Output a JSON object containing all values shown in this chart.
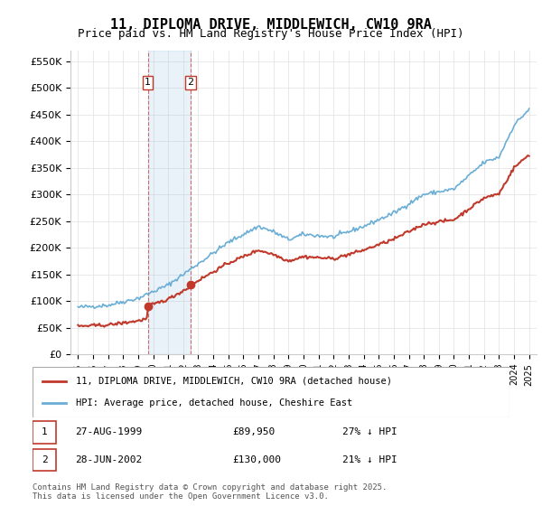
{
  "title": "11, DIPLOMA DRIVE, MIDDLEWICH, CW10 9RA",
  "subtitle": "Price paid vs. HM Land Registry's House Price Index (HPI)",
  "legend_line1": "11, DIPLOMA DRIVE, MIDDLEWICH, CW10 9RA (detached house)",
  "legend_line2": "HPI: Average price, detached house, Cheshire East",
  "footer": "Contains HM Land Registry data © Crown copyright and database right 2025.\nThis data is licensed under the Open Government Licence v3.0.",
  "transaction1_label": "1",
  "transaction1_date": "27-AUG-1999",
  "transaction1_price": "£89,950",
  "transaction1_hpi": "27% ↓ HPI",
  "transaction2_label": "2",
  "transaction2_date": "28-JUN-2002",
  "transaction2_price": "£130,000",
  "transaction2_hpi": "21% ↓ HPI",
  "marker1_x": 1999.65,
  "marker1_y": 89950,
  "marker2_x": 2002.48,
  "marker2_y": 130000,
  "vline1_x": 1999.65,
  "vline2_x": 2002.48,
  "xlim": [
    1994.5,
    2025.5
  ],
  "ylim": [
    0,
    570000
  ],
  "yticks": [
    0,
    50000,
    100000,
    150000,
    200000,
    250000,
    300000,
    350000,
    400000,
    450000,
    500000,
    550000
  ],
  "ytick_labels": [
    "£0",
    "£50K",
    "£100K",
    "£150K",
    "£200K",
    "£250K",
    "£300K",
    "£350K",
    "£400K",
    "£450K",
    "£500K",
    "£550K"
  ],
  "hpi_color": "#6aaed6",
  "price_color": "#c0392b",
  "background_color": "#ffffff",
  "grid_color": "#e0e0e0"
}
